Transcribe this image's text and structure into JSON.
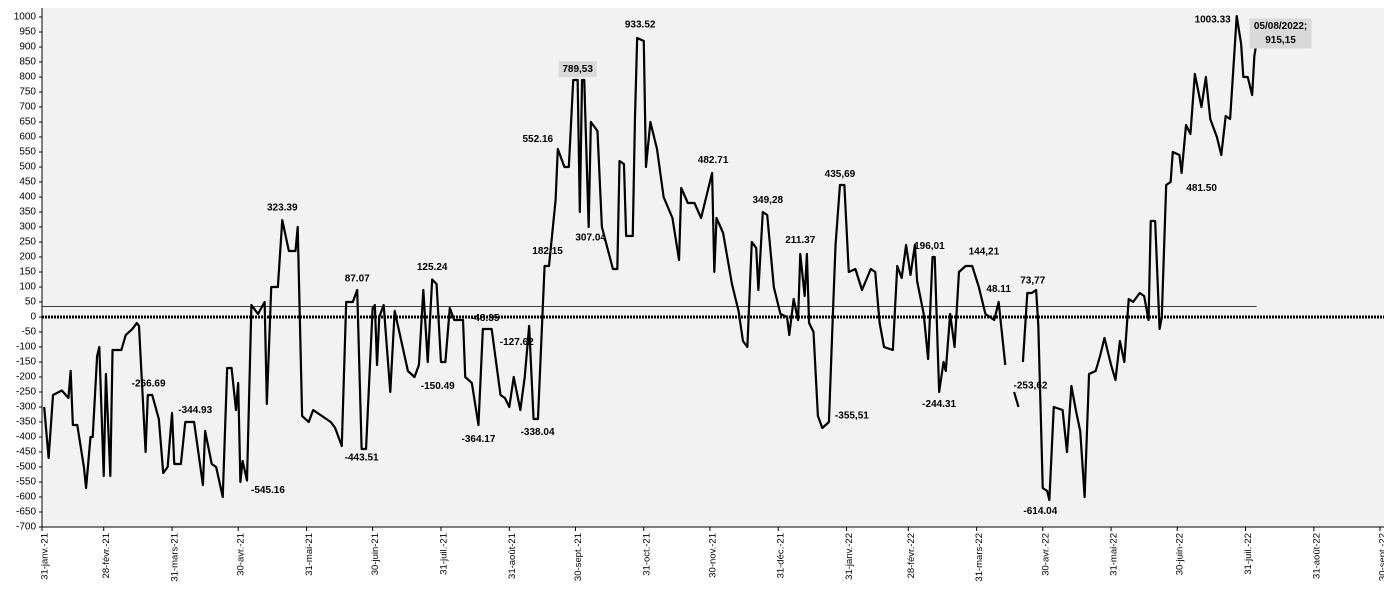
{
  "chart_data": {
    "type": "line",
    "color": "#000000",
    "reference_line": 35,
    "xlim": [
      "2021-01-31",
      "2022-09-30"
    ],
    "xticks": [
      {
        "value": "2021-01-31",
        "label": "31-janv.-21"
      },
      {
        "value": "2021-02-28",
        "label": "28-févr.-21"
      },
      {
        "value": "2021-03-31",
        "label": "31-mars-21"
      },
      {
        "value": "2021-04-30",
        "label": "30-avr.-21"
      },
      {
        "value": "2021-05-31",
        "label": "31-mai-21"
      },
      {
        "value": "2021-06-30",
        "label": "30-juin-21"
      },
      {
        "value": "2021-07-31",
        "label": "31-juil.-21"
      },
      {
        "value": "2021-08-31",
        "label": "31-août-21"
      },
      {
        "value": "2021-09-30",
        "label": "30-sept.-21"
      },
      {
        "value": "2021-10-31",
        "label": "31-oct.-21"
      },
      {
        "value": "2021-11-30",
        "label": "30-nov.-21"
      },
      {
        "value": "2021-12-31",
        "label": "31-déc.-21"
      },
      {
        "value": "2022-01-31",
        "label": "31-janv.-22"
      },
      {
        "value": "2022-02-28",
        "label": "28-févr.-22"
      },
      {
        "value": "2022-03-31",
        "label": "31-mars-22"
      },
      {
        "value": "2022-04-30",
        "label": "30-avr.-22"
      },
      {
        "value": "2022-05-31",
        "label": "31-mai-22"
      },
      {
        "value": "2022-06-30",
        "label": "30-juin-22"
      },
      {
        "value": "2022-07-31",
        "label": "31-juil.-22"
      },
      {
        "value": "2022-08-31",
        "label": "31-août-22"
      },
      {
        "value": "2022-09-30",
        "label": "30-sept.-22"
      }
    ],
    "ylim": [
      -700,
      1000
    ],
    "yticks": [
      1000,
      950,
      900,
      850,
      800,
      750,
      700,
      650,
      600,
      550,
      500,
      450,
      400,
      350,
      300,
      250,
      200,
      150,
      100,
      50,
      0,
      -50,
      -100,
      -150,
      -200,
      -250,
      -300,
      -350,
      -400,
      -450,
      -500,
      -550,
      -600,
      -650,
      -700
    ],
    "x": [
      "2021-02-01",
      "2021-02-03",
      "2021-02-05",
      "2021-02-09",
      "2021-02-12",
      "2021-02-13",
      "2021-02-14",
      "2021-02-16",
      "2021-02-19",
      "2021-02-20",
      "2021-02-22",
      "2021-02-23",
      "2021-02-25",
      "2021-02-26",
      "2021-02-28",
      "2021-03-01",
      "2021-03-03",
      "2021-03-04",
      "2021-03-08",
      "2021-03-10",
      "2021-03-13",
      "2021-03-15",
      "2021-03-16",
      "2021-03-19",
      "2021-03-20",
      "2021-03-22",
      "2021-03-25",
      "2021-03-27",
      "2021-03-29",
      "2021-03-31",
      "2021-04-01",
      "2021-04-04",
      "2021-04-06",
      "2021-04-10",
      "2021-04-14",
      "2021-04-15",
      "2021-04-18",
      "2021-04-20",
      "2021-04-23",
      "2021-04-25",
      "2021-04-27",
      "2021-04-29",
      "2021-04-30",
      "2021-05-01",
      "2021-05-02",
      "2021-05-04",
      "2021-05-06",
      "2021-05-09",
      "2021-05-12",
      "2021-05-13",
      "2021-05-15",
      "2021-05-18",
      "2021-05-20",
      "2021-05-23",
      "2021-05-26",
      "2021-05-27",
      "2021-05-29",
      "2021-06-01",
      "2021-06-03",
      "2021-06-07",
      "2021-06-11",
      "2021-06-13",
      "2021-06-16",
      "2021-06-18",
      "2021-06-21",
      "2021-06-23",
      "2021-06-25",
      "2021-06-27",
      "2021-06-30",
      "2021-07-01",
      "2021-07-02",
      "2021-07-03",
      "2021-07-05",
      "2021-07-08",
      "2021-07-10",
      "2021-07-13",
      "2021-07-16",
      "2021-07-19",
      "2021-07-21",
      "2021-07-23",
      "2021-07-25",
      "2021-07-27",
      "2021-07-29",
      "2021-07-31",
      "2021-08-02",
      "2021-08-04",
      "2021-08-06",
      "2021-08-10",
      "2021-08-11",
      "2021-08-14",
      "2021-08-17",
      "2021-08-19",
      "2021-08-23",
      "2021-08-27",
      "2021-08-29",
      "2021-08-31",
      "2021-09-02",
      "2021-09-05",
      "2021-09-07",
      "2021-09-09",
      "2021-09-11",
      "2021-09-13",
      "2021-09-16",
      "2021-09-18",
      "2021-09-21",
      "2021-09-22",
      "2021-09-25",
      "2021-09-27",
      "2021-09-29",
      "2021-10-01",
      "2021-10-02",
      "2021-10-03",
      "2021-10-04",
      "2021-10-06",
      "2021-10-07",
      "2021-10-10",
      "2021-10-12",
      "2021-10-17",
      "2021-10-19",
      "2021-10-20",
      "2021-10-22",
      "2021-10-23",
      "2021-10-26",
      "2021-10-27",
      "2021-10-28",
      "2021-10-31",
      "2021-11-01",
      "2021-11-03",
      "2021-11-06",
      "2021-11-09",
      "2021-11-13",
      "2021-11-16",
      "2021-11-17",
      "2021-11-20",
      "2021-11-23",
      "2021-11-26",
      "2021-11-29",
      "2021-12-01",
      "2021-12-02",
      "2021-12-03",
      "2021-12-06",
      "2021-12-10",
      "2021-12-13",
      "2021-12-15",
      "2021-12-17",
      "2021-12-19",
      "2021-12-21",
      "2021-12-22",
      "2021-12-24",
      "2021-12-26",
      "2021-12-29",
      "2022-01-01",
      "2022-01-04",
      "2022-01-05",
      "2022-01-07",
      "2022-01-09",
      "2022-01-10",
      "2022-01-12",
      "2022-01-13",
      "2022-01-14",
      "2022-01-16",
      "2022-01-18",
      "2022-01-20",
      "2022-01-23",
      "2022-01-25",
      "2022-01-26",
      "2022-01-28",
      "2022-01-30",
      "2022-02-01",
      "2022-02-04",
      "2022-02-07",
      "2022-02-11",
      "2022-02-13",
      "2022-02-15",
      "2022-02-17",
      "2022-02-21",
      "2022-02-23",
      "2022-02-25",
      "2022-02-27",
      "2022-03-01",
      "2022-03-03",
      "2022-03-04",
      "2022-03-07",
      "2022-03-09",
      "2022-03-11",
      "2022-03-12",
      "2022-03-14",
      "2022-03-16",
      "2022-03-17",
      "2022-03-19",
      "2022-03-21",
      "2022-03-23",
      "2022-03-26",
      "2022-03-29",
      "2022-04-01",
      "2022-04-04",
      "2022-04-06",
      "2022-04-08",
      "2022-04-10",
      "2022-04-13",
      "2022-04-15",
      "2022-04-17",
      "2022-04-19",
      "2022-04-20",
      "2022-04-21",
      "2022-04-23",
      "2022-04-25",
      "2022-04-27",
      "2022-04-28",
      "2022-04-30",
      "2022-05-02",
      "2022-05-03",
      "2022-05-05",
      "2022-05-09",
      "2022-05-11",
      "2022-05-13",
      "2022-05-15",
      "2022-05-17",
      "2022-05-19",
      "2022-05-21",
      "2022-05-24",
      "2022-05-26",
      "2022-05-28",
      "2022-05-31",
      "2022-06-02",
      "2022-06-04",
      "2022-06-06",
      "2022-06-08",
      "2022-06-10",
      "2022-06-13",
      "2022-06-15",
      "2022-06-17",
      "2022-06-18",
      "2022-06-20",
      "2022-06-22",
      "2022-06-23",
      "2022-06-25",
      "2022-06-27",
      "2022-06-28",
      "2022-07-01",
      "2022-07-02",
      "2022-07-04",
      "2022-07-06",
      "2022-07-08",
      "2022-07-11",
      "2022-07-13",
      "2022-07-15",
      "2022-07-18",
      "2022-07-20",
      "2022-07-22",
      "2022-07-24",
      "2022-07-27",
      "2022-07-29",
      "2022-07-30",
      "2022-08-01",
      "2022-08-03",
      "2022-08-04",
      "2022-08-05"
    ],
    "values": [
      -300,
      -470,
      -260,
      -245,
      -270,
      -180,
      -360,
      -360,
      -500,
      -570,
      -400,
      -400,
      -130,
      -100,
      -530,
      -190,
      -530,
      -110,
      -110,
      -60,
      -40,
      -20,
      -30,
      -450,
      -260,
      -260,
      -340,
      -520,
      -500,
      -320,
      -490,
      -490,
      -350,
      -350,
      -560,
      -380,
      -490,
      -500,
      -600,
      -170,
      -170,
      -310,
      -220,
      -550,
      -480,
      -545,
      40,
      10,
      50,
      -290,
      100,
      100,
      323,
      220,
      220,
      300,
      -330,
      -350,
      -310,
      -330,
      -350,
      -370,
      -430,
      50,
      50,
      90,
      -440,
      -440,
      30,
      40,
      -160,
      0,
      40,
      -250,
      20,
      -80,
      -180,
      -200,
      -160,
      90,
      -150,
      125,
      110,
      -150,
      -150,
      30,
      -10,
      -10,
      -200,
      -220,
      -360,
      -40,
      -40,
      -260,
      -270,
      -300,
      -200,
      -310,
      -200,
      -30,
      -340,
      -340,
      170,
      170,
      390,
      560,
      500,
      500,
      790,
      790,
      350,
      790,
      790,
      300,
      650,
      620,
      300,
      160,
      160,
      520,
      510,
      270,
      270,
      660,
      930,
      920,
      500,
      650,
      560,
      400,
      330,
      190,
      430,
      380,
      380,
      330,
      420,
      480,
      150,
      330,
      280,
      110,
      20,
      -80,
      -100,
      250,
      230,
      90,
      350,
      340,
      100,
      10,
      0,
      -60,
      60,
      -10,
      210,
      70,
      210,
      -20,
      -50,
      -330,
      -370,
      -350,
      50,
      240,
      440,
      440,
      150,
      160,
      90,
      160,
      150,
      -20,
      -100,
      -110,
      170,
      130,
      240,
      140,
      240,
      120,
      10,
      -140,
      200,
      200,
      -250,
      -150,
      -180,
      10,
      -100,
      150,
      170,
      170,
      100,
      10,
      0,
      -10,
      50,
      -160,
      null,
      -250,
      -300,
      null,
      -150,
      80,
      80,
      90,
      -30,
      -570,
      -580,
      -610,
      -300,
      -310,
      -450,
      -230,
      -310,
      -380,
      -600,
      -190,
      -180,
      -130,
      -70,
      -160,
      -210,
      -80,
      -150,
      60,
      50,
      80,
      70,
      -10,
      320,
      320,
      -40,
      0,
      440,
      450,
      550,
      540,
      480,
      640,
      610,
      810,
      700,
      800,
      660,
      600,
      540,
      670,
      660,
      1003,
      910,
      800,
      800,
      740,
      870,
      915
    ],
    "annotations": [
      {
        "x": "2021-05-20",
        "value": 323.39,
        "label": "323.39"
      },
      {
        "x": "2021-03-19",
        "value": -266.69,
        "label": "-266.69"
      },
      {
        "x": "2021-04-01",
        "value": -344.93,
        "label": "-344.93"
      },
      {
        "x": "2021-05-04",
        "value": -545.16,
        "label": "-545.16"
      },
      {
        "x": "2021-06-23",
        "value": 87.07,
        "label": "87.07"
      },
      {
        "x": "2021-06-25",
        "value": -443.51,
        "label": "-443.51"
      },
      {
        "x": "2021-07-27",
        "value": 125.24,
        "label": "125.24"
      },
      {
        "x": "2021-07-25",
        "value": -150.49,
        "label": "-150.49"
      },
      {
        "x": "2021-08-10",
        "value": -48.35,
        "label": "-48.35"
      },
      {
        "x": "2021-08-17",
        "value": -364.17,
        "label": "-364.17"
      },
      {
        "x": "2021-09-07",
        "value": -127.62,
        "label": "-127.62"
      },
      {
        "x": "2021-09-11",
        "value": -338.04,
        "label": "-338.04"
      },
      {
        "x": "2021-09-16",
        "value": 182.15,
        "label": "182.15"
      },
      {
        "x": "2021-09-22",
        "value": 552.16,
        "label": "552.16"
      },
      {
        "x": "2021-10-01",
        "value": 789.53,
        "label": "789,53",
        "boxed": true
      },
      {
        "x": "2021-10-06",
        "value": 307.04,
        "label": "307.04"
      },
      {
        "x": "2021-10-28",
        "value": 933.52,
        "label": "933.52"
      },
      {
        "x": "2021-12-01",
        "value": 482.71,
        "label": "482.71"
      },
      {
        "x": "2021-12-24",
        "value": 349.28,
        "label": "349,28"
      },
      {
        "x": "2022-01-10",
        "value": 211.37,
        "label": "211.37"
      },
      {
        "x": "2022-01-23",
        "value": -355.51,
        "label": "-355,51"
      },
      {
        "x": "2022-01-28",
        "value": 435.69,
        "label": "435,69"
      },
      {
        "x": "2022-02-27",
        "value": 196.01,
        "label": "196,01"
      },
      {
        "x": "2022-03-14",
        "value": -244.31,
        "label": "-244.31"
      },
      {
        "x": "2022-03-26",
        "value": 144.21,
        "label": "144,21"
      },
      {
        "x": "2022-04-10",
        "value": 48.11,
        "label": "48.11"
      },
      {
        "x": "2022-04-25",
        "value": 73.77,
        "label": "73,77"
      },
      {
        "x": "2022-04-19",
        "value": -253.62,
        "label": "-253,62"
      },
      {
        "x": "2022-05-03",
        "value": -614.04,
        "label": "-614.04"
      },
      {
        "x": "2022-07-02",
        "value": 481.5,
        "label": "481.50"
      },
      {
        "x": "2022-07-27",
        "value": 1003.33,
        "label": "1003.33"
      },
      {
        "x": "2022-08-05",
        "value": 915.15,
        "lines": [
          "05/08/2022;",
          "915,15"
        ],
        "boxed": true
      }
    ]
  }
}
